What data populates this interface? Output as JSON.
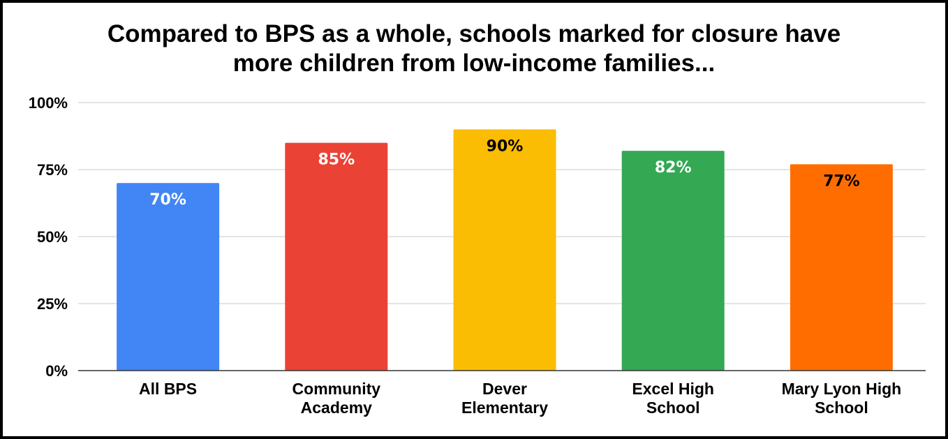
{
  "chart_data": {
    "type": "bar",
    "title_lines": [
      "Compared to BPS as a whole, schools marked for closure have",
      "more children from low-income families..."
    ],
    "categories": [
      [
        "All BPS"
      ],
      [
        "Community",
        "Academy"
      ],
      [
        "Dever",
        "Elementary"
      ],
      [
        "Excel High",
        "School"
      ],
      [
        "Mary Lyon High",
        "School"
      ]
    ],
    "values": [
      70,
      85,
      90,
      82,
      77
    ],
    "data_labels": [
      "70%",
      "85%",
      "90%",
      "82%",
      "77%"
    ],
    "bar_colors": [
      "#4285f4",
      "#ea4335",
      "#fbbc04",
      "#34a853",
      "#ff6d01"
    ],
    "label_colors": [
      "#ffffff",
      "#ffffff",
      "#000000",
      "#ffffff",
      "#000000"
    ],
    "ylim": [
      0,
      100
    ],
    "yticks": [
      0,
      25,
      50,
      75,
      100
    ],
    "ytick_labels": [
      "0%",
      "25%",
      "50%",
      "75%",
      "100%"
    ],
    "grid": true,
    "legend": "none"
  }
}
